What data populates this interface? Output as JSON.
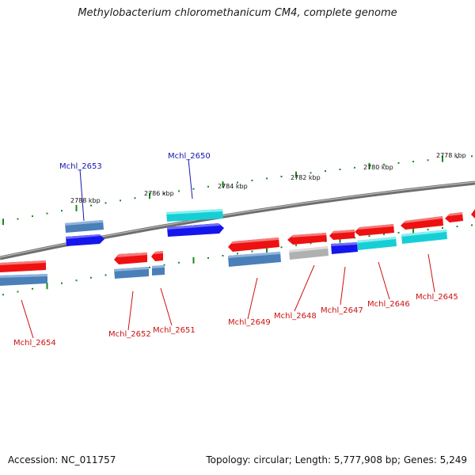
{
  "title": "Methylobacterium chloromethanicum CM4, complete genome",
  "footer": {
    "accession": "Accession: NC_011757",
    "summary": "Topology: circular; Length: 5,777,908 bp; Genes: 5,249"
  },
  "colors": {
    "backbone": "#7a7a7a",
    "tick": "#1a8a1a",
    "forward_label": "#1515b0",
    "reverse_label": "#cc1010",
    "red_gene": "#ee1111",
    "steel_gene": "#4a7fb8",
    "blue_gene": "#1515ee",
    "cyan_gene": "#16cfd6",
    "grey_gene": "#b0b0b0"
  },
  "scale_labels": [
    "2788 kbp",
    "2786 kbp",
    "2784 kbp",
    "2782 kbp",
    "2780 kbp",
    "2778 kbp"
  ],
  "gene_labels": {
    "forward": [
      "Mchl_2653",
      "Mchl_2650"
    ],
    "reverse": [
      "Mchl_2654",
      "Mchl_2652",
      "Mchl_2651",
      "Mchl_2649",
      "Mchl_2648",
      "Mchl_2647",
      "Mchl_2646",
      "Mchl_2645"
    ]
  }
}
